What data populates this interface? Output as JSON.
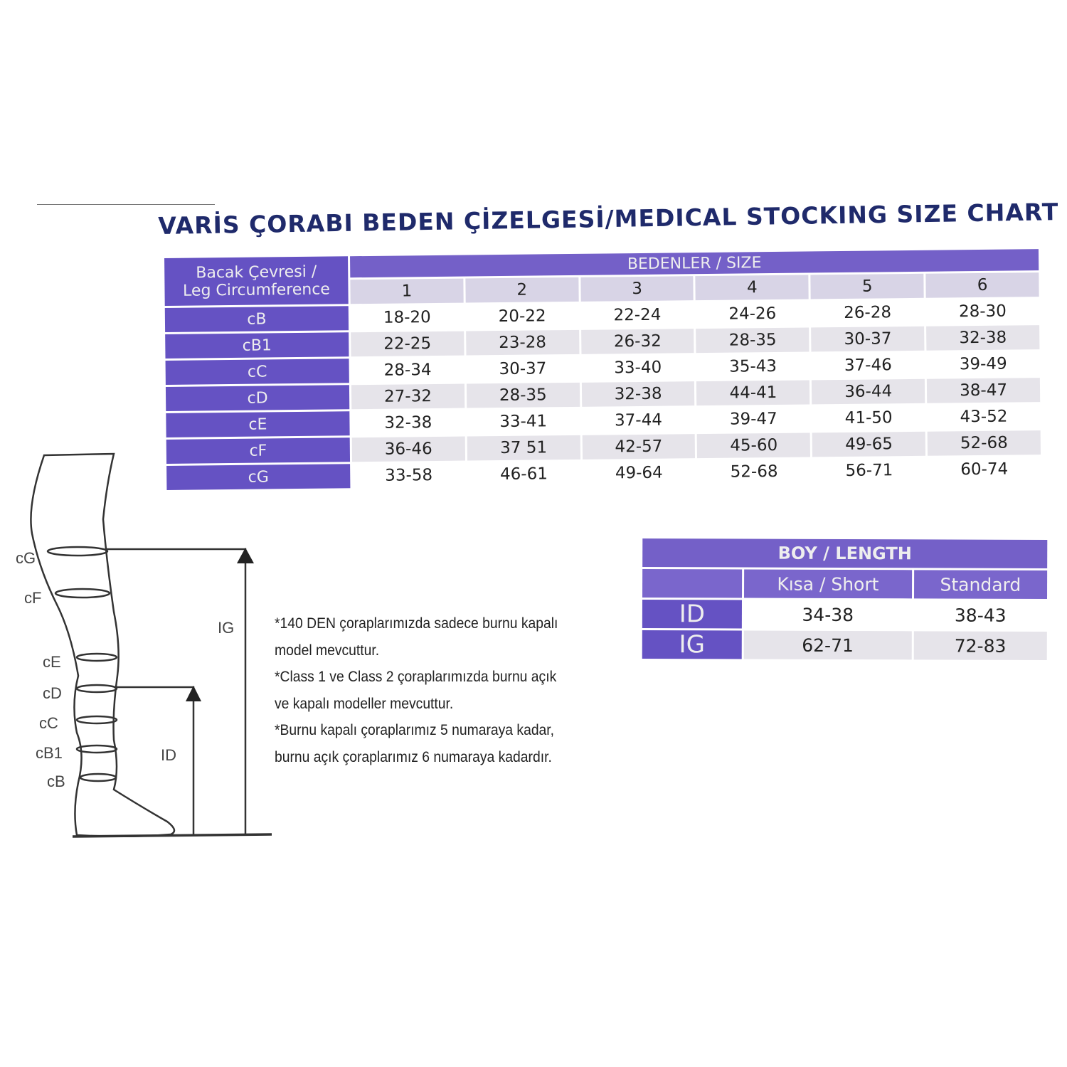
{
  "title": "VARİS ÇORABI BEDEN ÇİZELGESİ/MEDICAL STOCKING SIZE CHART",
  "size_table": {
    "row_header_line1": "Bacak Çevresi /",
    "row_header_line2": "Leg Circumference",
    "group_header": "BEDENLER / SIZE",
    "sizes": [
      "1",
      "2",
      "3",
      "4",
      "5",
      "6"
    ],
    "rows": [
      {
        "label": "cB",
        "values": [
          "18-20",
          "20-22",
          "22-24",
          "24-26",
          "26-28",
          "28-30"
        ]
      },
      {
        "label": "cB1",
        "values": [
          "22-25",
          "23-28",
          "26-32",
          "28-35",
          "30-37",
          "32-38"
        ]
      },
      {
        "label": "cC",
        "values": [
          "28-34",
          "30-37",
          "33-40",
          "35-43",
          "37-46",
          "39-49"
        ]
      },
      {
        "label": "cD",
        "values": [
          "27-32",
          "28-35",
          "32-38",
          "44-41",
          "36-44",
          "38-47"
        ]
      },
      {
        "label": "cE",
        "values": [
          "32-38",
          "33-41",
          "37-44",
          "39-47",
          "41-50",
          "43-52"
        ]
      },
      {
        "label": "cF",
        "values": [
          "36-46",
          "37 51",
          "42-57",
          "45-60",
          "49-65",
          "52-68"
        ]
      },
      {
        "label": "cG",
        "values": [
          "33-58",
          "46-61",
          "49-64",
          "52-68",
          "56-71",
          "60-74"
        ]
      }
    ]
  },
  "length_table": {
    "header": "BOY / LENGTH",
    "columns": [
      "Kısa / Short",
      "Standard"
    ],
    "rows": [
      {
        "label": "ID",
        "values": [
          "34-38",
          "38-43"
        ]
      },
      {
        "label": "IG",
        "values": [
          "62-71",
          "72-83"
        ]
      }
    ]
  },
  "notes": [
    "*140 DEN çoraplarımızda sadece burnu kapalı",
    "model mevcuttur.",
    "*Class 1 ve Class 2 çoraplarımızda burnu açık",
    "ve kapalı modeller mevcuttur.",
    "*Burnu kapalı çoraplarımız 5 numaraya kadar,",
    "burnu açık çoraplarımız 6 numaraya kadardır."
  ],
  "diagram": {
    "labels": [
      "cG",
      "cF",
      "cE",
      "cD",
      "cC",
      "cB1",
      "cB"
    ],
    "ig_label": "IG",
    "id_label": "ID"
  },
  "colors": {
    "header_purple": "#6552c3",
    "title_navy": "#1f2a6b",
    "row_alt": "#e6e4ea"
  }
}
